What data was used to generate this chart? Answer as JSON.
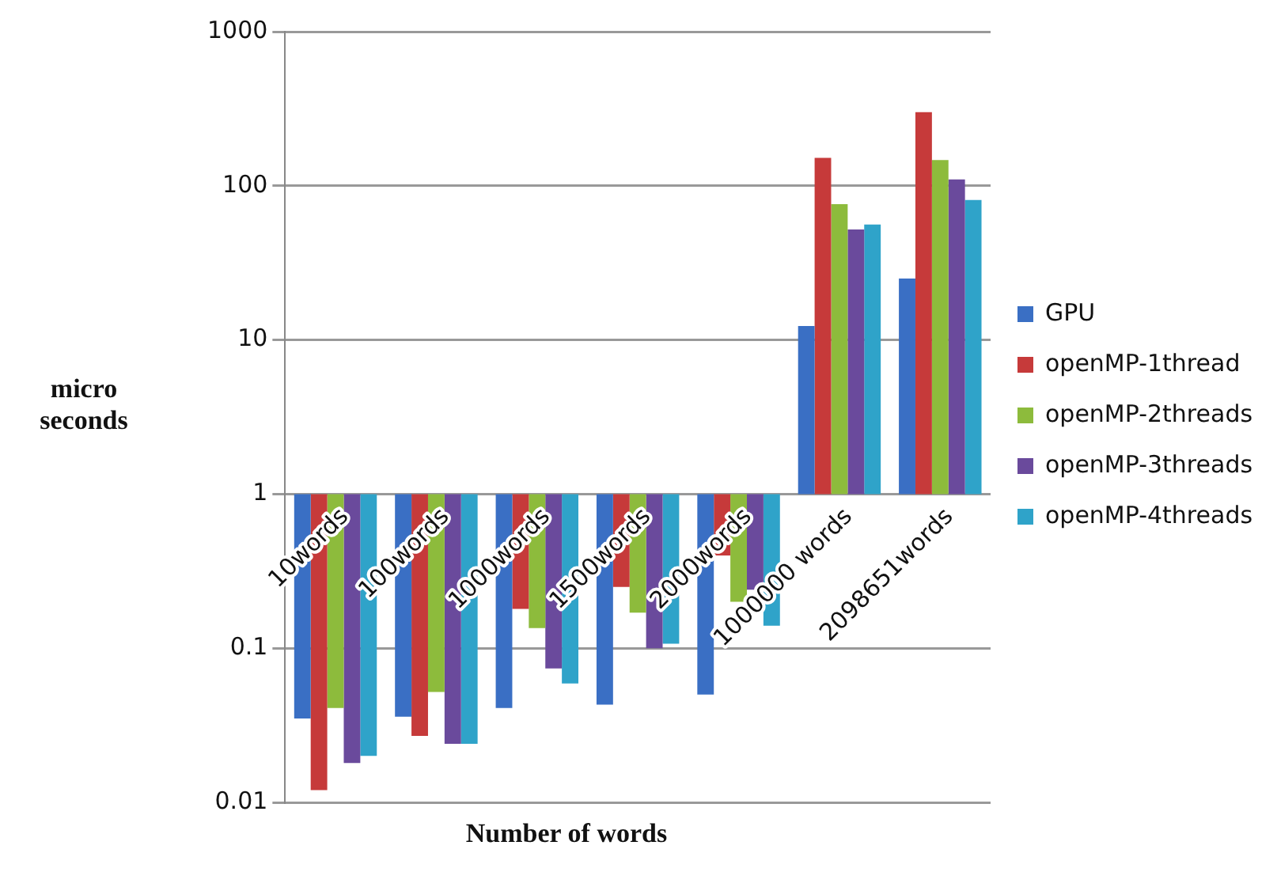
{
  "chart_data": {
    "type": "bar",
    "xlabel": "Number of words",
    "ylabel": "micro seconds",
    "categories": [
      "10words",
      "100words",
      "1000words",
      "1500words",
      "2000words",
      "1000000 words",
      "2098651words"
    ],
    "log": true,
    "grid": "y",
    "legend": "right",
    "ylim": [
      0.01,
      1000
    ],
    "yticks": [
      0.01,
      0.1,
      1,
      10,
      100,
      1000
    ],
    "series": [
      {
        "name": "GPU",
        "color": "#3a6fc4",
        "base": [
          1,
          1,
          1,
          1,
          1,
          1,
          1
        ],
        "values": [
          -0.965,
          -0.964,
          -0.959,
          -0.957,
          -0.95,
          11.3,
          24
        ]
      },
      {
        "name": "openMP-1thread",
        "color": "#c63a3a",
        "base": [
          1,
          1,
          1,
          1,
          1,
          1,
          1
        ],
        "values": [
          -0.988,
          -0.973,
          -0.82,
          -0.75,
          -0.6,
          151,
          299
        ]
      },
      {
        "name": "openMP-2threads",
        "color": "#8dbb3c",
        "base": [
          1,
          1,
          1,
          1,
          1,
          1,
          1
        ],
        "values": [
          -0.959,
          -0.948,
          -0.865,
          -0.83,
          -0.8,
          75,
          146
        ]
      },
      {
        "name": "openMP-3threads",
        "color": "#6a4a9c",
        "base": [
          1,
          1,
          1,
          1,
          1,
          1,
          1
        ],
        "values": [
          -0.982,
          -0.976,
          -0.926,
          -0.9,
          -0.76,
          51,
          109
        ]
      },
      {
        "name": "openMP-4threads",
        "color": "#2fa3c9",
        "base": [
          1,
          1,
          1,
          1,
          1,
          1,
          1
        ],
        "values": [
          -0.98,
          -0.976,
          -0.941,
          -0.893,
          -0.86,
          55,
          80
        ]
      }
    ]
  }
}
